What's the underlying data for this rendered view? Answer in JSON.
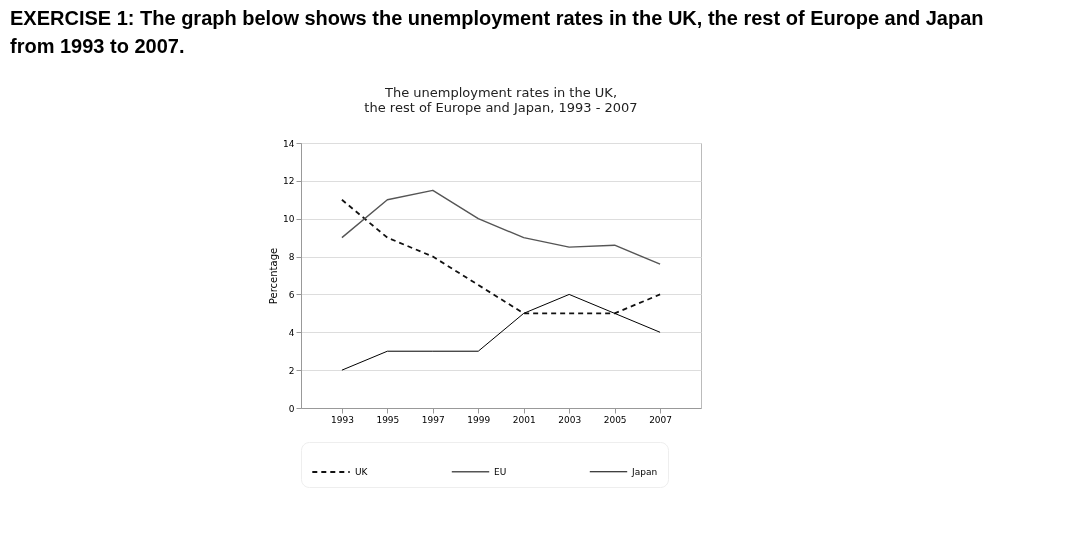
{
  "chart_data": {
    "type": "line",
    "title": "EXERCISE 1: The graph below shows the unemployment rates in the UK, the rest of Europe and Japan from 1993 to 2007.",
    "subtitle": "The unemployment rates in the UK, the rest of Europe and Japan, 1993 - 2007",
    "ylabel": "Percentage",
    "categories": [
      "1993",
      "1995",
      "1997",
      "1999",
      "2001",
      "2003",
      "2005",
      "2007"
    ],
    "series": [
      {
        "name": "UK",
        "color": "#111111",
        "line_style": "dashed",
        "values": [
          11,
          9,
          8,
          6.5,
          5,
          5,
          5,
          6
        ]
      },
      {
        "name": "EU",
        "color": "#555555",
        "line_style": "solid",
        "values": [
          9,
          11,
          11.5,
          10,
          9,
          8.5,
          8.6,
          7.6
        ]
      },
      {
        "name": "Japan",
        "color": "#000000",
        "line_style": "solid",
        "values": [
          2,
          3,
          3,
          3,
          5,
          6,
          5,
          4
        ]
      }
    ],
    "ylim": [
      0,
      14
    ],
    "yticks": [
      0,
      2,
      4,
      6,
      8,
      10,
      12,
      14
    ],
    "grid": "y",
    "legend": "bottom",
    "marker": "none"
  }
}
